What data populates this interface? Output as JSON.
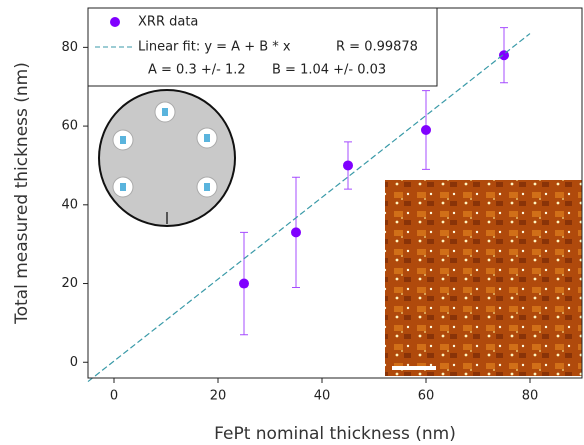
{
  "chart_data": {
    "type": "scatter",
    "xlabel": "FePt nominal thickness (nm)",
    "ylabel": "Total measured thickness (nm)",
    "series": [
      {
        "name": "XRR data",
        "color": "#8000ff",
        "x": [
          25,
          35,
          45,
          60,
          75
        ],
        "values": [
          20,
          33,
          50,
          59,
          78
        ],
        "errors": [
          13,
          14,
          6,
          10,
          7
        ]
      },
      {
        "name": "Linear fit:  y = A + B * x",
        "color": "#3a9aa8",
        "x": [
          -5,
          80
        ],
        "values": [
          -4.9,
          83.5
        ]
      }
    ],
    "annotations": [
      "R = 0.99878",
      "A = 0.3 +/- 1.2",
      "B = 1.04 +/- 0.03"
    ],
    "xlim": [
      -5,
      90
    ],
    "ylim": [
      -4,
      90
    ],
    "xticks": [
      0,
      20,
      40,
      60,
      80
    ],
    "yticks": [
      0,
      20,
      40,
      60,
      80
    ],
    "grid": true
  }
}
